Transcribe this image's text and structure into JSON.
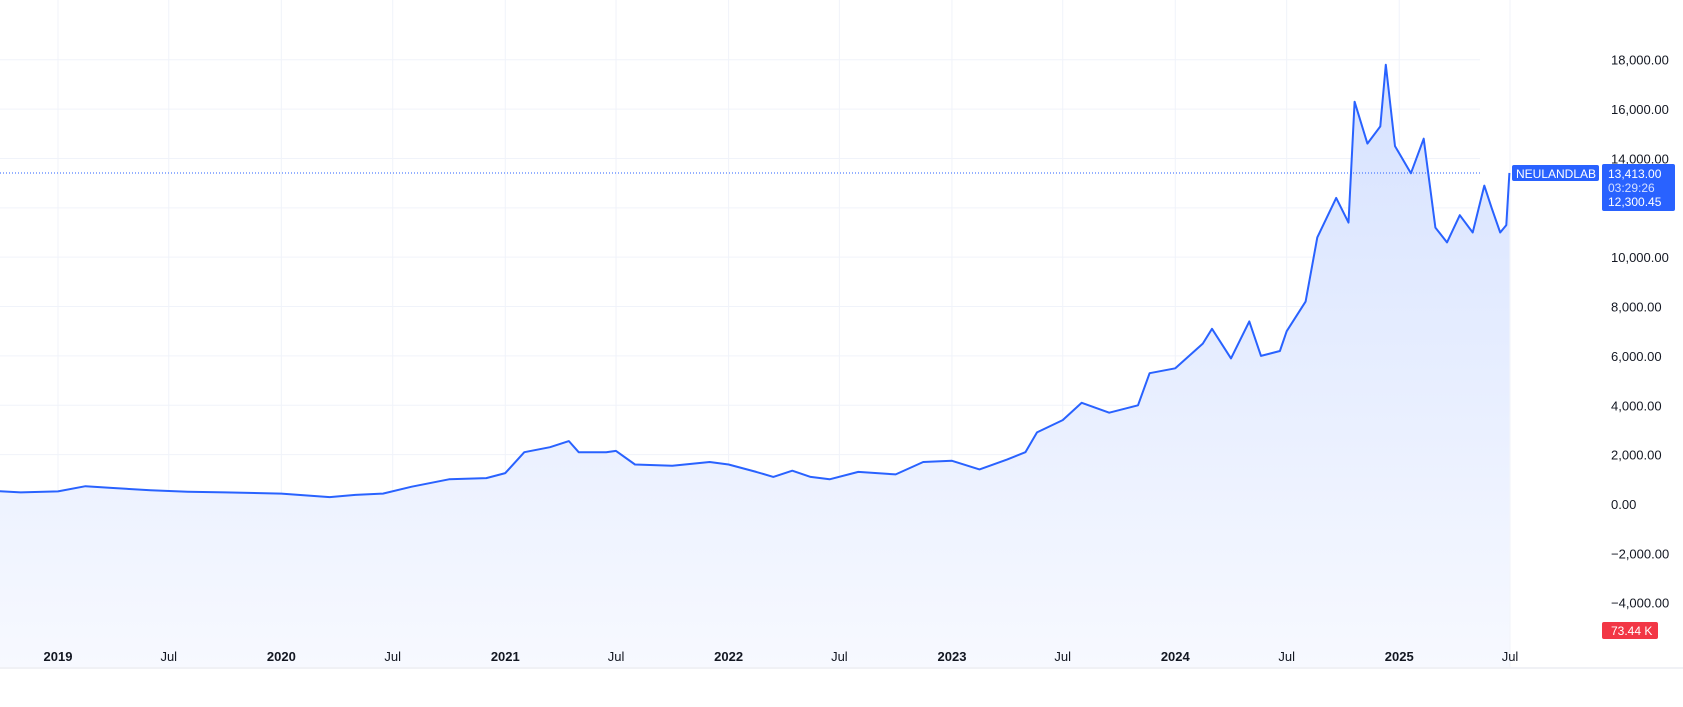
{
  "chart_data": {
    "type": "area",
    "symbol": "NEULANDLAB",
    "last_price": "13,413.00",
    "countdown": "03:29:26",
    "reference_price": "12,300.45",
    "volume_badge": "73.44 K",
    "y_ticks": [
      {
        "value": 18000,
        "label": "18,000.00"
      },
      {
        "value": 16000,
        "label": "16,000.00"
      },
      {
        "value": 14000,
        "label": "14,000.00"
      },
      {
        "value": 10000,
        "label": "10,000.00"
      },
      {
        "value": 8000,
        "label": "8,000.00"
      },
      {
        "value": 6000,
        "label": "6,000.00"
      },
      {
        "value": 4000,
        "label": "4,000.00"
      },
      {
        "value": 2000,
        "label": "2,000.00"
      },
      {
        "value": 0,
        "label": "0.00"
      },
      {
        "value": -2000,
        "label": "−2,000.00"
      },
      {
        "value": -4000,
        "label": "−4,000.00"
      }
    ],
    "x_ticks": [
      {
        "date": "2019-01-01",
        "label": "2019",
        "major": true
      },
      {
        "date": "2019-07-01",
        "label": "Jul",
        "major": false
      },
      {
        "date": "2020-01-01",
        "label": "2020",
        "major": true
      },
      {
        "date": "2020-07-01",
        "label": "Jul",
        "major": false
      },
      {
        "date": "2021-01-01",
        "label": "2021",
        "major": true
      },
      {
        "date": "2021-07-01",
        "label": "Jul",
        "major": false
      },
      {
        "date": "2022-01-01",
        "label": "2022",
        "major": true
      },
      {
        "date": "2022-07-01",
        "label": "Jul",
        "major": false
      },
      {
        "date": "2023-01-01",
        "label": "2023",
        "major": true
      },
      {
        "date": "2023-07-01",
        "label": "Jul",
        "major": false
      },
      {
        "date": "2024-01-01",
        "label": "2024",
        "major": true
      },
      {
        "date": "2024-07-01",
        "label": "Jul",
        "major": false
      },
      {
        "date": "2025-01-01",
        "label": "2025",
        "major": true
      },
      {
        "date": "2025-07-01",
        "label": "Jul",
        "major": false
      }
    ],
    "ylim": [
      -4400,
      18800
    ],
    "xlim": [
      "2018-09-01",
      "2025-11-15"
    ],
    "grid": true,
    "colors": {
      "line": "#2962ff",
      "fill_top": "#d6e2ff",
      "fill_bottom": "#f7f9ff",
      "grid": "#f0f3fa",
      "badge": "#2962ff",
      "volume_badge": "#f23645",
      "last_price_line": "#2962ff"
    },
    "series": [
      {
        "points": [
          [
            "2018-09-01",
            550
          ],
          [
            "2018-11-01",
            470
          ],
          [
            "2019-01-01",
            510
          ],
          [
            "2019-02-15",
            720
          ],
          [
            "2019-04-01",
            650
          ],
          [
            "2019-06-01",
            560
          ],
          [
            "2019-08-01",
            500
          ],
          [
            "2019-10-01",
            470
          ],
          [
            "2020-01-01",
            420
          ],
          [
            "2020-03-20",
            280
          ],
          [
            "2020-05-01",
            370
          ],
          [
            "2020-06-15",
            420
          ],
          [
            "2020-08-01",
            700
          ],
          [
            "2020-10-01",
            1000
          ],
          [
            "2020-12-01",
            1050
          ],
          [
            "2021-01-01",
            1250
          ],
          [
            "2021-02-01",
            2100
          ],
          [
            "2021-03-15",
            2300
          ],
          [
            "2021-04-15",
            2550
          ],
          [
            "2021-05-01",
            2100
          ],
          [
            "2021-06-15",
            2100
          ],
          [
            "2021-07-01",
            2150
          ],
          [
            "2021-08-01",
            1600
          ],
          [
            "2021-10-01",
            1550
          ],
          [
            "2021-12-01",
            1700
          ],
          [
            "2022-01-01",
            1600
          ],
          [
            "2022-02-15",
            1300
          ],
          [
            "2022-03-15",
            1100
          ],
          [
            "2022-04-15",
            1350
          ],
          [
            "2022-05-15",
            1100
          ],
          [
            "2022-06-15",
            1000
          ],
          [
            "2022-08-01",
            1300
          ],
          [
            "2022-10-01",
            1200
          ],
          [
            "2022-11-15",
            1700
          ],
          [
            "2023-01-01",
            1750
          ],
          [
            "2023-02-15",
            1400
          ],
          [
            "2023-04-01",
            1800
          ],
          [
            "2023-05-01",
            2100
          ],
          [
            "2023-05-20",
            2900
          ],
          [
            "2023-07-01",
            3400
          ],
          [
            "2023-08-01",
            4100
          ],
          [
            "2023-09-15",
            3700
          ],
          [
            "2023-11-01",
            4000
          ],
          [
            "2023-11-20",
            5300
          ],
          [
            "2024-01-01",
            5500
          ],
          [
            "2024-02-15",
            6500
          ],
          [
            "2024-03-01",
            7100
          ],
          [
            "2024-04-01",
            5900
          ],
          [
            "2024-05-01",
            7400
          ],
          [
            "2024-05-20",
            6000
          ],
          [
            "2024-06-20",
            6200
          ],
          [
            "2024-07-01",
            7000
          ],
          [
            "2024-08-01",
            8200
          ],
          [
            "2024-08-20",
            10800
          ],
          [
            "2024-09-20",
            12400
          ],
          [
            "2024-10-10",
            11400
          ],
          [
            "2024-10-20",
            16300
          ],
          [
            "2024-11-10",
            14600
          ],
          [
            "2024-12-01",
            15300
          ],
          [
            "2024-12-10",
            17800
          ],
          [
            "2024-12-25",
            14500
          ],
          [
            "2025-01-20",
            13400
          ],
          [
            "2025-02-10",
            14800
          ],
          [
            "2025-03-01",
            11200
          ],
          [
            "2025-03-20",
            10600
          ],
          [
            "2025-04-10",
            11700
          ],
          [
            "2025-05-01",
            11000
          ],
          [
            "2025-05-20",
            12900
          ],
          [
            "2025-06-01",
            12000
          ],
          [
            "2025-06-15",
            11000
          ],
          [
            "2025-06-25",
            11300
          ],
          [
            "2025-06-30",
            13413
          ]
        ]
      }
    ]
  }
}
